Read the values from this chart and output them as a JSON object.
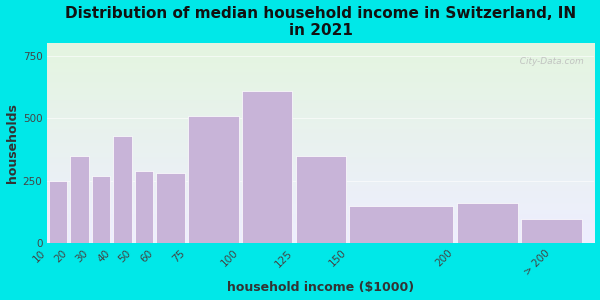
{
  "title": "Distribution of median household income in Switzerland, IN\nin 2021",
  "xlabel": "household income ($1000)",
  "ylabel": "households",
  "bar_lefts": [
    10,
    20,
    30,
    40,
    50,
    60,
    75,
    100,
    125,
    150,
    200,
    230
  ],
  "bar_widths": [
    10,
    10,
    10,
    10,
    10,
    15,
    25,
    25,
    25,
    50,
    30,
    30
  ],
  "bar_values": [
    250,
    350,
    270,
    430,
    290,
    280,
    510,
    610,
    350,
    150,
    160,
    95
  ],
  "bar_color": "#c8b4d8",
  "bar_edgecolor": "#ffffff",
  "xlim": [
    10,
    265
  ],
  "ylim": [
    0,
    800
  ],
  "yticks": [
    0,
    250,
    500,
    750
  ],
  "xtick_positions": [
    10,
    20,
    30,
    40,
    50,
    60,
    75,
    100,
    125,
    150,
    200,
    245
  ],
  "xtick_labels": [
    "10",
    "20",
    "30",
    "40",
    "50",
    "60",
    "75",
    "100",
    "125",
    "150",
    "200",
    "> 200"
  ],
  "background_outer": "#00e8e8",
  "background_inner_top": "#e4f5e0",
  "background_inner_bottom": "#eeeeff",
  "title_fontsize": 11,
  "axis_label_fontsize": 9,
  "tick_fontsize": 7.5,
  "watermark": "  City-Data.com"
}
